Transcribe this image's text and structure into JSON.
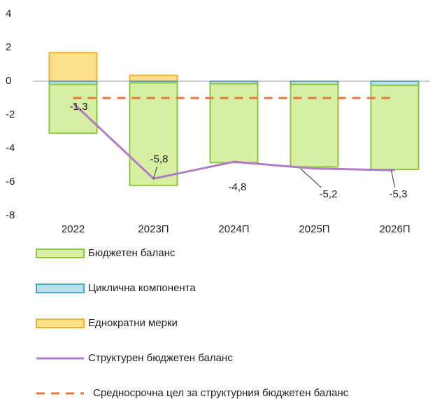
{
  "chart_data": {
    "type": "bar",
    "categories": [
      "2022",
      "2023П",
      "2024П",
      "2025П",
      "2026П"
    ],
    "ylim": [
      -8,
      4
    ],
    "yticks": [
      4,
      2,
      0,
      -2,
      -4,
      -6,
      -8
    ],
    "series": [
      {
        "name": "Бюджетен баланс",
        "style": "bar",
        "color": "#d6efa2",
        "stroke": "#8dc63f",
        "values": [
          -2.9,
          -6.1,
          -4.7,
          -4.9,
          -5.0
        ]
      },
      {
        "name": "Циклична компонента",
        "style": "bar",
        "color": "#b9dfe9",
        "stroke": "#4bacc6",
        "values": [
          -0.2,
          -0.1,
          -0.15,
          -0.2,
          -0.25
        ]
      },
      {
        "name": "Еднократни мерки",
        "style": "bar",
        "color": "#ffe08a",
        "stroke": "#f0b030",
        "values": [
          1.7,
          0.35,
          0,
          0,
          0
        ]
      },
      {
        "name": "Структурен бюджетен баланс",
        "style": "line",
        "color": "#b07cc6",
        "values": [
          -1.3,
          -5.8,
          -4.8,
          -5.2,
          -5.3
        ],
        "value_labels": [
          "-1,3",
          "-5,8",
          "-4,8",
          "-5,2",
          "-5,3"
        ]
      },
      {
        "name": "Средносрочна цел за структурния бюджетен баланс",
        "style": "dashed",
        "color": "#e8773f",
        "values": [
          -1,
          -1,
          -1,
          -1,
          -1
        ]
      }
    ]
  }
}
